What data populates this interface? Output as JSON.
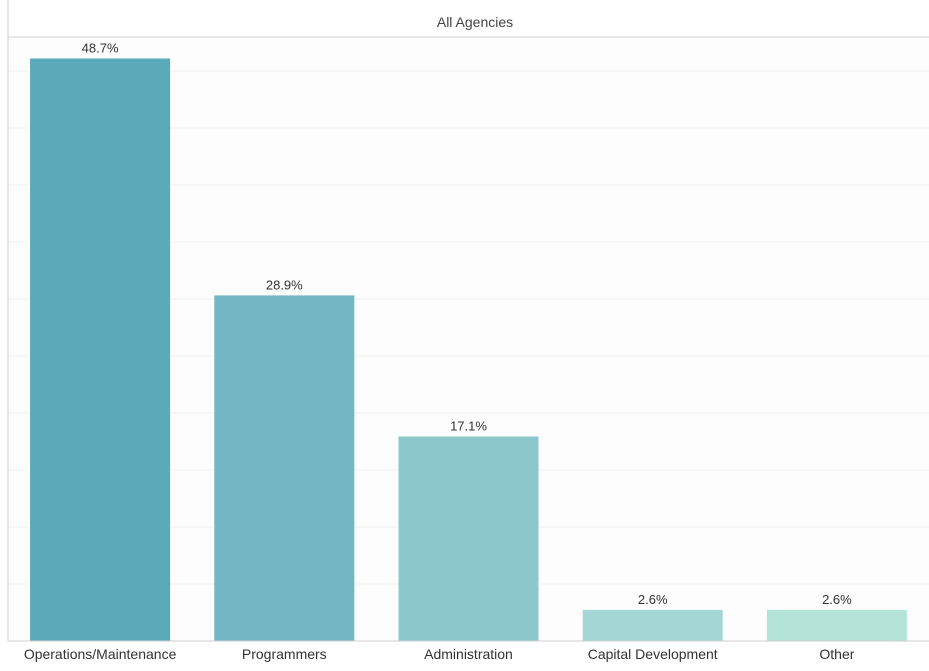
{
  "chart_data": {
    "type": "bar",
    "title": "All Agencies",
    "categories": [
      "Operations/Maintenance",
      "Programmers",
      "Administration",
      "Capital Development",
      "Other"
    ],
    "values": [
      48.7,
      28.9,
      17.1,
      2.6,
      2.6
    ],
    "data_labels": [
      "48.7%",
      "28.9%",
      "17.1%",
      "2.6%",
      "2.6%"
    ],
    "value_unit": "%",
    "ylim": [
      0,
      50
    ],
    "grid": true,
    "legend": "none",
    "colors": [
      "#5aa9b9",
      "#72b7c3",
      "#8cc7cc",
      "#a3d6d4",
      "#b4e3d7"
    ]
  }
}
